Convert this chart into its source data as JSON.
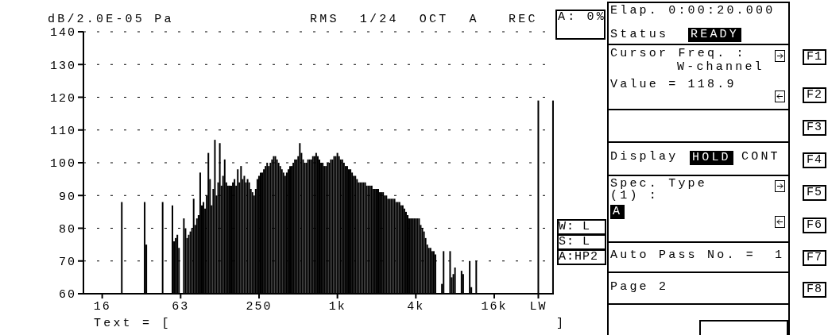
{
  "chart_data": {
    "type": "bar",
    "title": "RMS 1/24 OCT A",
    "ylabel": "dB/2.0E-05 Pa",
    "categories": [
      null,
      null,
      null,
      null,
      null,
      null,
      null,
      null,
      null,
      null,
      null,
      "16",
      null,
      null,
      null,
      null,
      null,
      null,
      null,
      null,
      null,
      null,
      null,
      null,
      null,
      null,
      null,
      null,
      null,
      null,
      null,
      null,
      null,
      null,
      null,
      null,
      null,
      null,
      null,
      null,
      null,
      null,
      null,
      null,
      null,
      null,
      null,
      null,
      null,
      null,
      null,
      null,
      null,
      null,
      null,
      null,
      null,
      null,
      null,
      "63",
      null,
      null,
      null,
      null,
      null,
      null,
      null,
      null,
      null,
      null,
      null,
      null,
      null,
      null,
      null,
      null,
      null,
      null,
      null,
      null,
      null,
      null,
      null,
      null,
      null,
      null,
      null,
      null,
      null,
      null,
      null,
      null,
      null,
      null,
      null,
      null,
      null,
      null,
      null,
      null,
      null,
      null,
      null,
      null,
      null,
      null,
      null,
      "250",
      null,
      null,
      null,
      null,
      null,
      null,
      null,
      null,
      null,
      null,
      null,
      null,
      null,
      null,
      null,
      null,
      null,
      null,
      null,
      null,
      null,
      null,
      null,
      null,
      null,
      null,
      null,
      null,
      null,
      null,
      null,
      null,
      null,
      null,
      null,
      null,
      null,
      null,
      null,
      null,
      null,
      null,
      null,
      null,
      null,
      null,
      null,
      "1k",
      null,
      null,
      null,
      null,
      null,
      null,
      null,
      null,
      null,
      null,
      null,
      null,
      null,
      null,
      null,
      null,
      null,
      null,
      null,
      null,
      null,
      null,
      null,
      null,
      null,
      null,
      null,
      null,
      null,
      null,
      null,
      null,
      null,
      null,
      null,
      null,
      null,
      null,
      null,
      null,
      null,
      null,
      null,
      null,
      null,
      null,
      null,
      "4k",
      null,
      null,
      null,
      null,
      null,
      null,
      null,
      null,
      null,
      null,
      null,
      null,
      null,
      null,
      null,
      null,
      null,
      null,
      null,
      null,
      null,
      null,
      null,
      null,
      null,
      null,
      null,
      null,
      null,
      null,
      null,
      null,
      null,
      null,
      null,
      null,
      null,
      null,
      null,
      null,
      null,
      null,
      null,
      null,
      null,
      null,
      null,
      "16k",
      null,
      null,
      null,
      null,
      null,
      null,
      null,
      null,
      null,
      null,
      null,
      null,
      null,
      null,
      null,
      null,
      null,
      null,
      null,
      null,
      null,
      null,
      null,
      null,
      null,
      null,
      "LW",
      null,
      null,
      null,
      null,
      null,
      null,
      null,
      null,
      null
    ],
    "values": [
      null,
      null,
      null,
      null,
      null,
      null,
      null,
      null,
      null,
      null,
      null,
      null,
      null,
      null,
      null,
      null,
      null,
      null,
      null,
      null,
      null,
      null,
      null,
      88,
      null,
      null,
      null,
      null,
      null,
      null,
      null,
      null,
      null,
      null,
      null,
      null,
      null,
      88,
      75,
      null,
      null,
      null,
      null,
      null,
      null,
      null,
      null,
      null,
      88,
      null,
      null,
      null,
      null,
      null,
      87,
      76,
      77,
      78,
      74,
      null,
      null,
      83,
      80,
      77,
      78,
      79,
      80,
      89,
      81,
      83,
      84,
      97,
      87,
      88,
      86,
      90,
      103,
      95,
      87,
      92,
      107,
      90,
      94,
      106,
      93,
      96,
      101,
      94,
      93,
      93,
      93,
      94,
      95,
      93,
      98,
      94,
      99,
      95,
      96,
      94,
      95,
      94,
      92,
      91,
      90,
      92,
      95,
      96,
      97,
      97,
      98,
      99,
      100,
      99,
      100,
      101,
      102,
      102,
      101,
      100,
      99,
      98,
      97,
      96,
      97,
      98,
      99,
      99,
      100,
      101,
      101,
      102,
      106,
      103,
      101,
      100,
      100,
      101,
      101,
      101,
      102,
      102,
      103,
      102,
      101,
      100,
      100,
      99,
      99,
      100,
      100,
      101,
      101,
      102,
      102,
      103,
      102,
      101,
      101,
      100,
      99,
      99,
      98,
      98,
      97,
      96,
      96,
      95,
      94,
      94,
      94,
      94,
      94,
      93,
      93,
      93,
      93,
      92,
      92,
      92,
      92,
      91,
      91,
      91,
      90,
      90,
      89,
      89,
      89,
      89,
      89,
      88,
      88,
      88,
      87,
      87,
      86,
      85,
      84,
      83,
      83,
      83,
      83,
      83,
      83,
      83,
      81,
      80,
      79,
      77,
      75,
      74,
      74,
      73,
      73,
      72,
      null,
      null,
      null,
      63,
      73,
      null,
      null,
      null,
      73,
      65,
      66,
      68,
      null,
      null,
      null,
      67,
      66,
      null,
      null,
      null,
      70,
      62,
      null,
      null,
      70,
      null,
      null,
      null,
      null,
      null,
      null,
      null,
      null,
      null,
      null,
      null,
      null,
      null,
      null,
      null,
      null,
      null,
      null,
      null,
      null,
      null,
      null,
      null,
      null,
      null,
      null,
      null,
      null,
      null,
      null,
      null,
      null,
      null,
      null,
      null,
      null,
      null,
      119,
      null,
      null,
      null,
      null,
      null,
      null,
      null,
      null,
      119
    ],
    "color": "#000000",
    "ylim": [
      60,
      140
    ],
    "yticks": [
      60,
      70,
      80,
      90,
      100,
      110,
      120,
      130,
      140
    ],
    "grid": "y",
    "annotations": [
      "REC",
      "A: 0%",
      "W: L",
      "S: L",
      "A:HP2",
      "Text = [",
      "]",
      "Elap. 0:00:20.000",
      "Status",
      "READY",
      "Cursor Freq. :",
      "W-channel",
      "Value = 118.9",
      "Display",
      "HOLD",
      "CONT",
      "Spec. Type",
      "(1) :",
      "A",
      "Auto Pass No. =",
      "1",
      "Page 2",
      "F1",
      "F2",
      "F3",
      "F4",
      "F5",
      "F6",
      "F7",
      "F8"
    ]
  }
}
